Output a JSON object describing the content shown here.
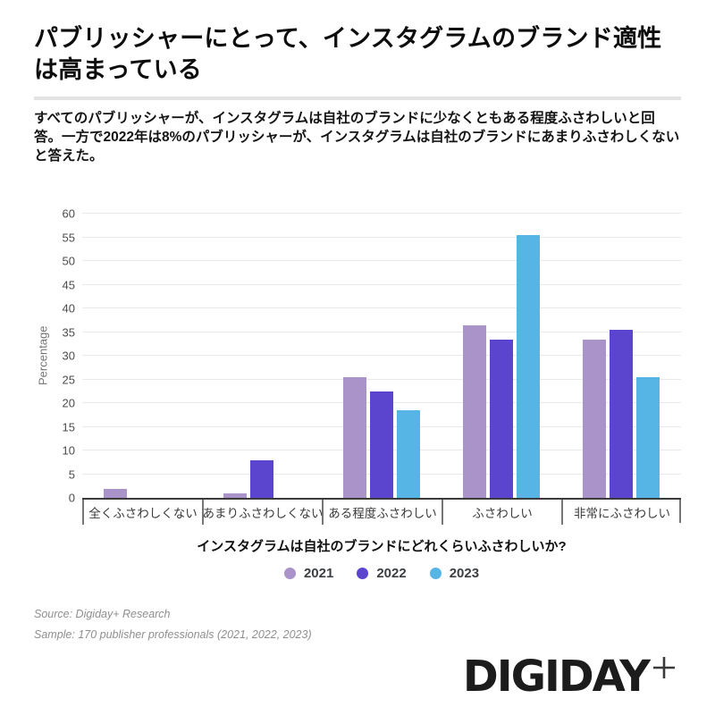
{
  "page": {
    "title": "パブリッシャーにとって、インスタグラムのブランド適性は高まっている",
    "subtitle": "すべてのパブリッシャーが、インスタグラムは自社のブランドに少なくともある程度ふさわしいと回答。一方で2022年は8%のパブリッシャーが、インスタグラムは自社のブランドにあまりふさわしくないと答えた。"
  },
  "chart_data": {
    "type": "bar",
    "title": "",
    "categories": [
      "全くふさわしくない",
      "あまりふさわしくない",
      "ある程度ふさわしい",
      "ふさわしい",
      "非常にふさわしい"
    ],
    "series": [
      {
        "name": "2021",
        "color": "#A993C8",
        "values": [
          2,
          1,
          25.5,
          36.5,
          33.5
        ]
      },
      {
        "name": "2022",
        "color": "#5B45CF",
        "values": [
          0,
          8,
          22.5,
          33.5,
          35.5
        ]
      },
      {
        "name": "2023",
        "color": "#57B5E6",
        "values": [
          0,
          0,
          18.5,
          55.5,
          25.5
        ]
      }
    ],
    "xlabel": "インスタグラムは自社のブランドにどれくらいふさわしいか?",
    "ylabel": "Percentage",
    "ylim": [
      0,
      60
    ],
    "ytick_step": 5,
    "grid": true,
    "legend_position": "bottom"
  },
  "footer": {
    "source": "Source: Digiday+ Research",
    "sample": "Sample: 170 publisher professionals (2021, 2022, 2023)",
    "logo_text": "DIGIDAY"
  }
}
